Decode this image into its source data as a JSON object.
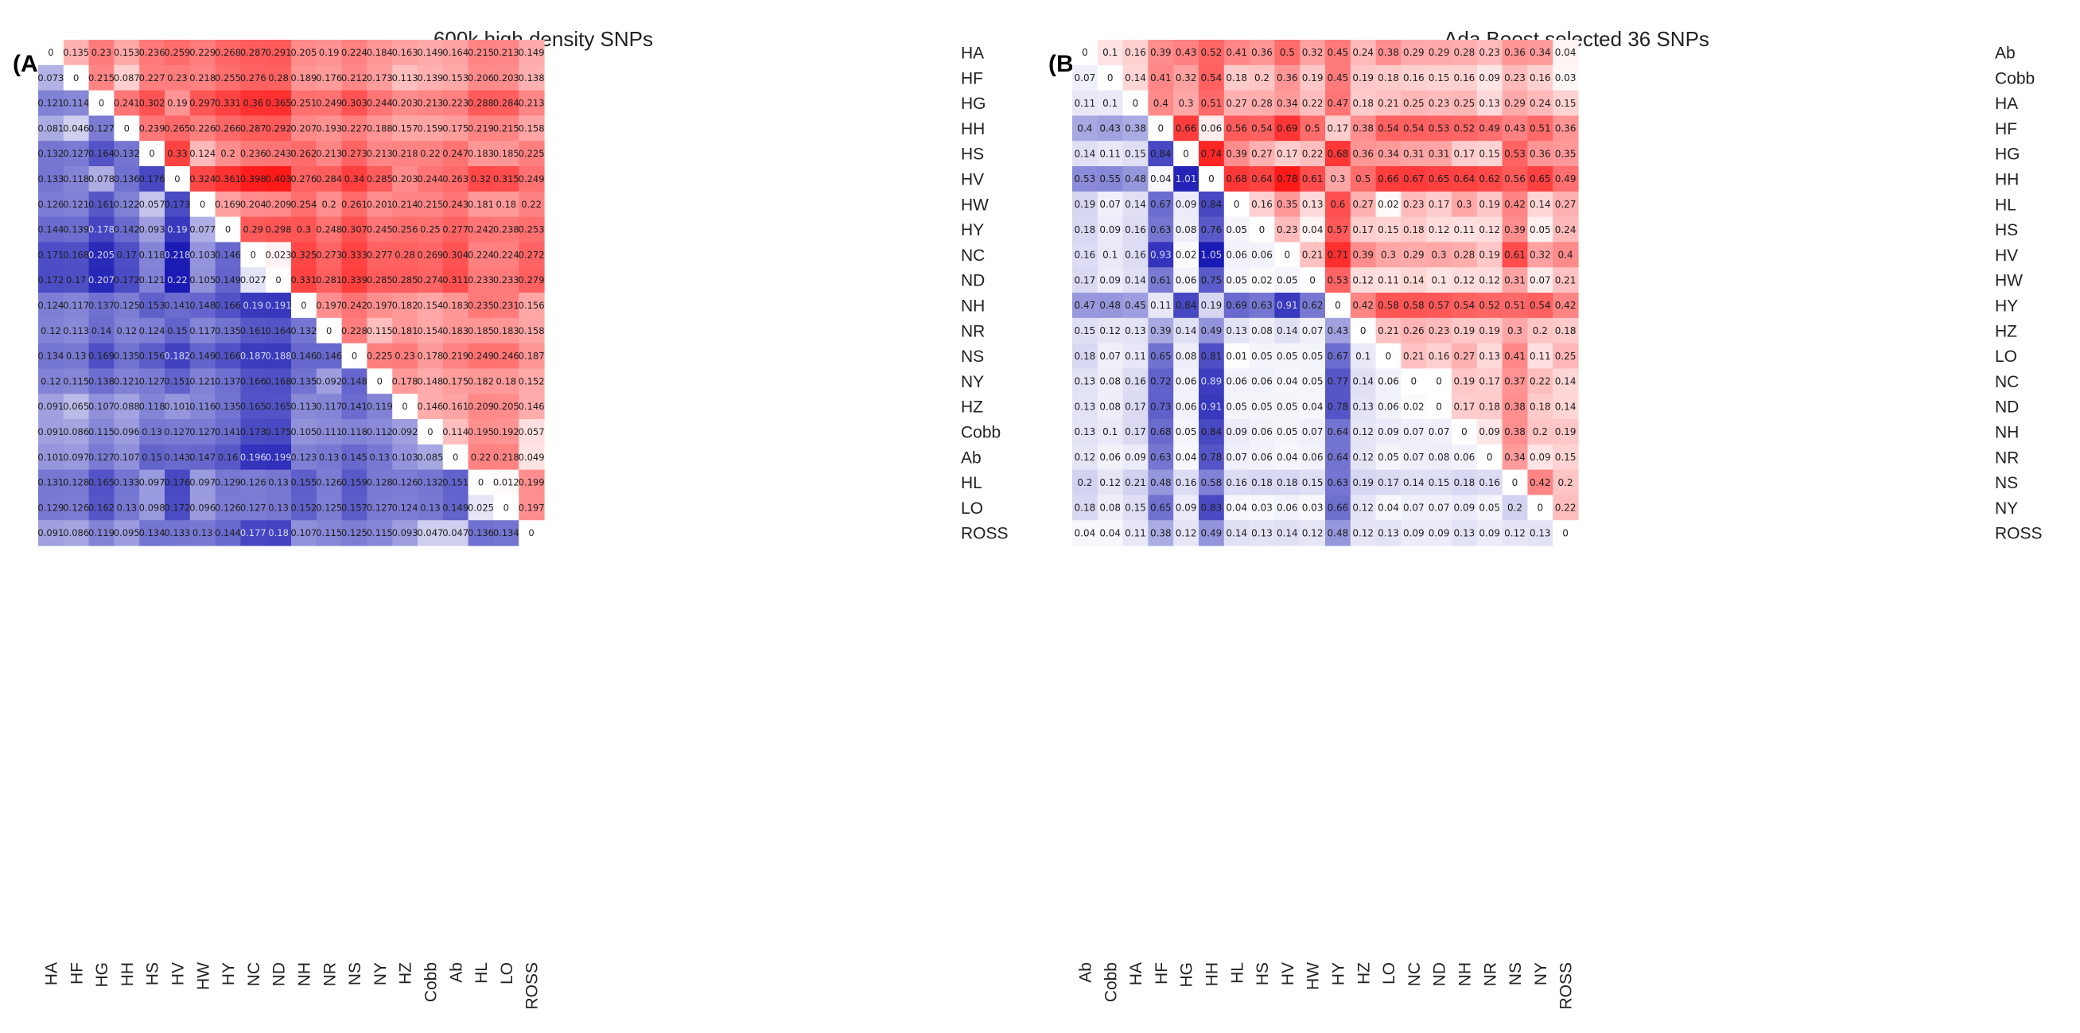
{
  "chart_data": [
    {
      "type": "heatmap",
      "panel_label": "(A)",
      "title": "600k high density SNPs",
      "labels": [
        "HA",
        "HF",
        "HG",
        "HH",
        "HS",
        "HV",
        "HW",
        "HY",
        "NC",
        "ND",
        "NH",
        "NR",
        "NS",
        "NY",
        "HZ",
        "Cobb",
        "Ab",
        "HL",
        "LO",
        "ROSS"
      ],
      "matrix": [
        [
          0,
          0.135,
          0.23,
          0.153,
          0.236,
          0.259,
          0.229,
          0.268,
          0.287,
          0.291,
          0.205,
          0.19,
          0.224,
          0.184,
          0.163,
          0.149,
          0.164,
          0.215,
          0.213,
          0.149
        ],
        [
          0.073,
          0,
          0.215,
          0.087,
          0.227,
          0.23,
          0.218,
          0.255,
          0.276,
          0.28,
          0.189,
          0.176,
          0.212,
          0.173,
          0.113,
          0.139,
          0.153,
          0.206,
          0.203,
          0.138
        ],
        [
          0.121,
          0.114,
          0,
          0.241,
          0.302,
          0.19,
          0.297,
          0.331,
          0.36,
          0.365,
          0.251,
          0.249,
          0.303,
          0.244,
          0.203,
          0.213,
          0.223,
          0.288,
          0.284,
          0.213
        ],
        [
          0.081,
          0.046,
          0.127,
          0,
          0.239,
          0.265,
          0.226,
          0.266,
          0.287,
          0.292,
          0.207,
          0.193,
          0.227,
          0.188,
          0.157,
          0.159,
          0.175,
          0.219,
          0.215,
          0.158
        ],
        [
          0.132,
          0.127,
          0.164,
          0.132,
          0,
          0.33,
          0.124,
          0.2,
          0.236,
          0.243,
          0.262,
          0.213,
          0.273,
          0.213,
          0.218,
          0.22,
          0.247,
          0.183,
          0.185,
          0.225
        ],
        [
          0.133,
          0.118,
          0.078,
          0.136,
          0.176,
          0,
          0.324,
          0.361,
          0.398,
          0.403,
          0.276,
          0.284,
          0.34,
          0.285,
          0.203,
          0.244,
          0.263,
          0.32,
          0.315,
          0.249
        ],
        [
          0.126,
          0.121,
          0.161,
          0.122,
          0.057,
          0.173,
          0,
          0.169,
          0.204,
          0.209,
          0.254,
          0.2,
          0.261,
          0.201,
          0.214,
          0.215,
          0.243,
          0.181,
          0.18,
          0.22
        ],
        [
          0.144,
          0.139,
          0.178,
          0.142,
          0.093,
          0.19,
          0.077,
          0,
          0.29,
          0.298,
          0.3,
          0.248,
          0.307,
          0.245,
          0.256,
          0.25,
          0.277,
          0.242,
          0.238,
          0.253
        ],
        [
          0.171,
          0.168,
          0.205,
          0.17,
          0.118,
          0.218,
          0.103,
          0.146,
          0,
          0.023,
          0.325,
          0.273,
          0.333,
          0.277,
          0.28,
          0.269,
          0.304,
          0.224,
          0.224,
          0.272
        ],
        [
          0.172,
          0.17,
          0.207,
          0.172,
          0.121,
          0.22,
          0.105,
          0.149,
          0.027,
          0,
          0.331,
          0.281,
          0.339,
          0.285,
          0.285,
          0.274,
          0.311,
          0.233,
          0.233,
          0.279
        ],
        [
          0.124,
          0.117,
          0.137,
          0.125,
          0.153,
          0.141,
          0.148,
          0.166,
          0.19,
          0.191,
          0,
          0.197,
          0.242,
          0.197,
          0.182,
          0.154,
          0.183,
          0.235,
          0.231,
          0.156
        ],
        [
          0.12,
          0.113,
          0.14,
          0.12,
          0.124,
          0.15,
          0.117,
          0.135,
          0.161,
          0.164,
          0.132,
          0,
          0.228,
          0.115,
          0.181,
          0.154,
          0.183,
          0.185,
          0.183,
          0.158
        ],
        [
          0.134,
          0.13,
          0.169,
          0.135,
          0.156,
          0.182,
          0.149,
          0.166,
          0.187,
          0.188,
          0.146,
          0.146,
          0,
          0.225,
          0.23,
          0.178,
          0.219,
          0.249,
          0.246,
          0.187
        ],
        [
          0.12,
          0.115,
          0.138,
          0.121,
          0.127,
          0.151,
          0.121,
          0.137,
          0.166,
          0.168,
          0.135,
          0.092,
          0.148,
          0,
          0.178,
          0.148,
          0.175,
          0.182,
          0.18,
          0.152
        ],
        [
          0.091,
          0.065,
          0.107,
          0.088,
          0.118,
          0.101,
          0.116,
          0.135,
          0.165,
          0.165,
          0.113,
          0.117,
          0.141,
          0.119,
          0,
          0.146,
          0.161,
          0.209,
          0.205,
          0.146
        ],
        [
          0.091,
          0.086,
          0.115,
          0.096,
          0.13,
          0.127,
          0.127,
          0.141,
          0.173,
          0.175,
          0.105,
          0.111,
          0.118,
          0.112,
          0.092,
          0,
          0.114,
          0.195,
          0.192,
          0.057
        ],
        [
          0.101,
          0.097,
          0.127,
          0.107,
          0.15,
          0.143,
          0.147,
          0.16,
          0.196,
          0.199,
          0.123,
          0.13,
          0.145,
          0.13,
          0.103,
          0.085,
          0,
          0.22,
          0.218,
          0.049
        ],
        [
          0.131,
          0.128,
          0.165,
          0.133,
          0.097,
          0.176,
          0.097,
          0.129,
          0.126,
          0.13,
          0.155,
          0.126,
          0.159,
          0.128,
          0.126,
          0.132,
          0.151,
          0,
          0.012,
          0.199
        ],
        [
          0.129,
          0.126,
          0.162,
          0.13,
          0.098,
          0.172,
          0.096,
          0.126,
          0.127,
          0.13,
          0.152,
          0.125,
          0.157,
          0.127,
          0.124,
          0.13,
          0.149,
          0.025,
          0,
          0.197
        ],
        [
          0.091,
          0.086,
          0.119,
          0.095,
          0.134,
          0.133,
          0.13,
          0.144,
          0.177,
          0.18,
          0.107,
          0.115,
          0.125,
          0.115,
          0.093,
          0.047,
          0.047,
          0.136,
          0.134,
          0
        ]
      ],
      "upper_color_max": 0.403,
      "lower_color_max": 0.22
    },
    {
      "type": "heatmap",
      "panel_label": "(B)",
      "title": "Ada Boost selected 36 SNPs",
      "labels": [
        "Ab",
        "Cobb",
        "HA",
        "HF",
        "HG",
        "HH",
        "HL",
        "HS",
        "HV",
        "HW",
        "HY",
        "HZ",
        "LO",
        "NC",
        "ND",
        "NH",
        "NR",
        "NS",
        "NY",
        "ROSS"
      ],
      "matrix": [
        [
          0,
          0.1,
          0.16,
          0.39,
          0.43,
          0.52,
          0.41,
          0.36,
          0.5,
          0.32,
          0.45,
          0.24,
          0.38,
          0.29,
          0.29,
          0.28,
          0.23,
          0.36,
          0.34,
          0.04
        ],
        [
          0.07,
          0,
          0.14,
          0.41,
          0.32,
          0.54,
          0.18,
          0.2,
          0.36,
          0.19,
          0.45,
          0.19,
          0.18,
          0.16,
          0.15,
          0.16,
          0.09,
          0.23,
          0.16,
          0.03
        ],
        [
          0.11,
          0.1,
          0,
          0.4,
          0.3,
          0.51,
          0.27,
          0.28,
          0.34,
          0.22,
          0.47,
          0.18,
          0.21,
          0.25,
          0.23,
          0.25,
          0.13,
          0.29,
          0.24,
          0.15
        ],
        [
          0.4,
          0.43,
          0.38,
          0,
          0.66,
          0.06,
          0.56,
          0.54,
          0.69,
          0.5,
          0.17,
          0.38,
          0.54,
          0.54,
          0.53,
          0.52,
          0.49,
          0.43,
          0.51,
          0.36
        ],
        [
          0.14,
          0.11,
          0.15,
          0.84,
          0,
          0.74,
          0.39,
          0.27,
          0.17,
          0.22,
          0.68,
          0.36,
          0.34,
          0.31,
          0.31,
          0.17,
          0.15,
          0.53,
          0.36,
          0.35
        ],
        [
          0.53,
          0.55,
          0.48,
          0.04,
          1.01,
          0,
          0.68,
          0.64,
          0.78,
          0.61,
          0.3,
          0.5,
          0.66,
          0.67,
          0.65,
          0.64,
          0.62,
          0.56,
          0.65,
          0.49
        ],
        [
          0.19,
          0.07,
          0.14,
          0.67,
          0.09,
          0.84,
          0,
          0.16,
          0.35,
          0.13,
          0.6,
          0.27,
          0.02,
          0.23,
          0.17,
          0.3,
          0.19,
          0.42,
          0.14,
          0.27
        ],
        [
          0.18,
          0.09,
          0.16,
          0.63,
          0.08,
          0.76,
          0.05,
          0,
          0.23,
          0.04,
          0.57,
          0.17,
          0.15,
          0.18,
          0.12,
          0.11,
          0.12,
          0.39,
          0.05,
          0.24
        ],
        [
          0.16,
          0.1,
          0.16,
          0.93,
          0.02,
          1.05,
          0.06,
          0.06,
          0,
          0.21,
          0.71,
          0.39,
          0.3,
          0.29,
          0.3,
          0.28,
          0.19,
          0.61,
          0.32,
          0.4
        ],
        [
          0.17,
          0.09,
          0.14,
          0.61,
          0.06,
          0.75,
          0.05,
          0.02,
          0.05,
          0,
          0.53,
          0.12,
          0.11,
          0.14,
          0.1,
          0.12,
          0.12,
          0.31,
          0.07,
          0.21
        ],
        [
          0.47,
          0.48,
          0.45,
          0.11,
          0.84,
          0.19,
          0.69,
          0.63,
          0.91,
          0.62,
          0,
          0.42,
          0.58,
          0.58,
          0.57,
          0.54,
          0.52,
          0.51,
          0.54,
          0.42
        ],
        [
          0.15,
          0.12,
          0.13,
          0.39,
          0.14,
          0.49,
          0.13,
          0.08,
          0.14,
          0.07,
          0.43,
          0,
          0.21,
          0.26,
          0.23,
          0.19,
          0.19,
          0.3,
          0.2,
          0.18
        ],
        [
          0.18,
          0.07,
          0.11,
          0.65,
          0.08,
          0.81,
          0.01,
          0.05,
          0.05,
          0.05,
          0.67,
          0.1,
          0,
          0.21,
          0.16,
          0.27,
          0.13,
          0.41,
          0.11,
          0.25
        ],
        [
          0.13,
          0.08,
          0.16,
          0.72,
          0.06,
          0.89,
          0.06,
          0.06,
          0.04,
          0.05,
          0.77,
          0.14,
          0.06,
          0,
          0,
          0.19,
          0.17,
          0.37,
          0.22,
          0.14
        ],
        [
          0.13,
          0.08,
          0.17,
          0.73,
          0.06,
          0.91,
          0.05,
          0.05,
          0.05,
          0.04,
          0.78,
          0.13,
          0.06,
          0.02,
          0,
          0.17,
          0.18,
          0.38,
          0.18,
          0.14
        ],
        [
          0.13,
          0.1,
          0.17,
          0.68,
          0.05,
          0.84,
          0.09,
          0.06,
          0.05,
          0.07,
          0.64,
          0.12,
          0.09,
          0.07,
          0.07,
          0,
          0.09,
          0.38,
          0.2,
          0.19
        ],
        [
          0.12,
          0.06,
          0.09,
          0.63,
          0.04,
          0.78,
          0.07,
          0.06,
          0.04,
          0.06,
          0.64,
          0.12,
          0.05,
          0.07,
          0.08,
          0.06,
          0,
          0.34,
          0.09,
          0.15
        ],
        [
          0.2,
          0.12,
          0.21,
          0.48,
          0.16,
          0.58,
          0.16,
          0.18,
          0.18,
          0.15,
          0.63,
          0.19,
          0.17,
          0.14,
          0.15,
          0.18,
          0.16,
          0,
          0.42,
          0.2
        ],
        [
          0.18,
          0.08,
          0.15,
          0.65,
          0.09,
          0.83,
          0.04,
          0.03,
          0.06,
          0.03,
          0.66,
          0.12,
          0.04,
          0.07,
          0.07,
          0.09,
          0.05,
          0.2,
          0,
          0.22
        ],
        [
          0.04,
          0.04,
          0.11,
          0.38,
          0.12,
          0.49,
          0.14,
          0.13,
          0.14,
          0.12,
          0.48,
          0.12,
          0.13,
          0.09,
          0.09,
          0.13,
          0.09,
          0.12,
          0.13,
          0
        ]
      ],
      "upper_color_max": 0.78,
      "lower_color_max": 1.05
    }
  ],
  "colors": {
    "upper": "#ff1a1a",
    "lower": "#1a1ab4",
    "background": "#ffffff"
  }
}
